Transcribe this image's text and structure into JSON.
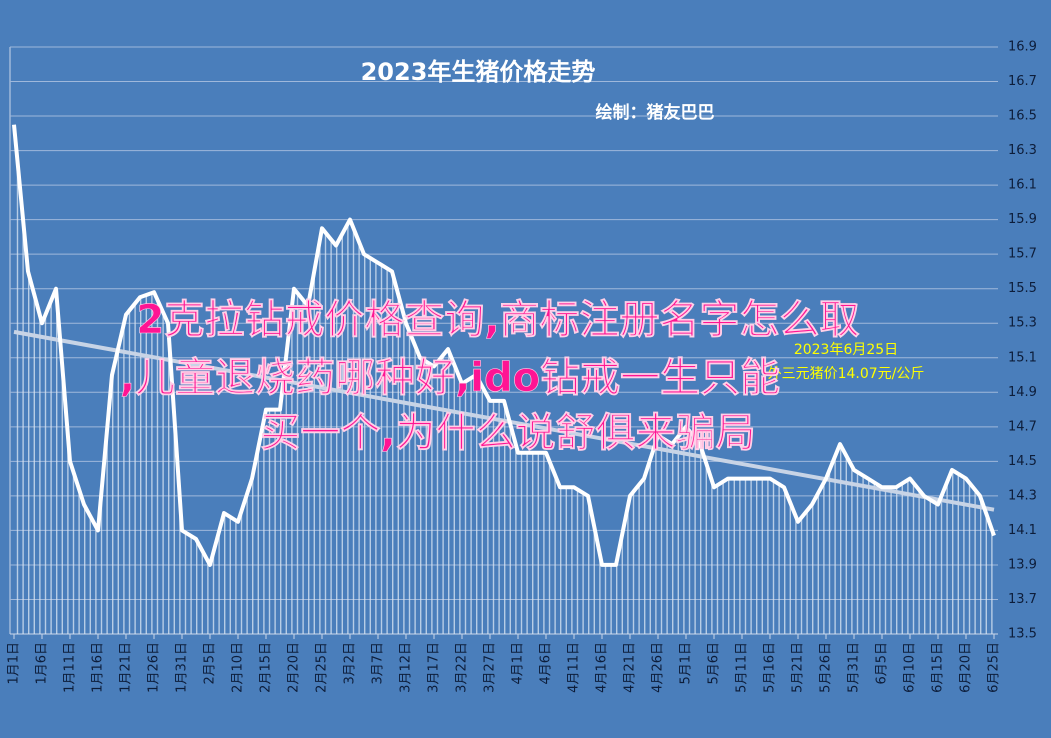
{
  "chart_data": {
    "type": "line",
    "title": "2023年生猪价格走势",
    "subtitle": "绘制：猪友巴巴",
    "annotation": [
      "2023年6月25日",
      "外三元猪价14.07元/公斤"
    ],
    "overlay_text": [
      "2克拉钻戒价格查询,商标注册名字怎么取",
      ",儿童退烧药哪种好,ido钻戒一生只能",
      "买一个,为什么说舒俱来骗局"
    ],
    "categories": [
      "1月1日",
      null,
      "1月6日",
      null,
      "1月11日",
      null,
      "1月16日",
      null,
      "1月21日",
      null,
      "1月26日",
      null,
      "1月31日",
      null,
      "2月5日",
      null,
      "2月10日",
      null,
      "2月15日",
      null,
      "2月20日",
      null,
      "2月25日",
      null,
      "3月2日",
      null,
      "3月7日",
      null,
      "3月12日",
      null,
      "3月17日",
      null,
      "3月22日",
      null,
      "3月27日",
      null,
      "4月1日",
      null,
      "4月6日",
      null,
      "4月11日",
      null,
      "4月16日",
      null,
      "4月21日",
      null,
      "4月26日",
      null,
      "5月1日",
      null,
      "5月6日",
      null,
      "5月11日",
      null,
      "5月16日",
      null,
      "5月21日",
      null,
      "5月26日",
      null,
      "5月31日",
      null,
      "6月5日",
      null,
      "6月10日",
      null,
      "6月15日",
      null,
      "6月20日",
      null,
      "6月25日"
    ],
    "series": [
      {
        "color": "#ffffff",
        "values": [
          16.45,
          15.6,
          15.3,
          15.5,
          14.5,
          14.25,
          14.1,
          15.0,
          15.35,
          15.45,
          15.48,
          15.3,
          14.1,
          14.05,
          13.9,
          14.2,
          14.15,
          14.4,
          14.8,
          14.8,
          15.5,
          15.4,
          15.85,
          15.75,
          15.9,
          15.7,
          15.65,
          15.6,
          15.3,
          15.1,
          15.05,
          15.15,
          14.95,
          15.0,
          14.85,
          14.85,
          14.55,
          14.55,
          14.55,
          14.35,
          14.35,
          14.3,
          13.9,
          13.9,
          14.3,
          14.4,
          14.65,
          14.6,
          14.7,
          14.6,
          14.35,
          14.4,
          14.4,
          14.4,
          14.4,
          14.35,
          14.15,
          14.25,
          14.4,
          14.6,
          14.45,
          14.4,
          14.35,
          14.35,
          14.4,
          14.3,
          14.25,
          14.45,
          14.4,
          14.3,
          14.07
        ]
      }
    ],
    "trendline": {
      "color": "#c8d4e6",
      "values": [
        15.25,
        14.22
      ]
    },
    "ylim": [
      13.5,
      16.9
    ],
    "yticks": [
      13.5,
      13.7,
      13.9,
      14.1,
      14.3,
      14.5,
      14.7,
      14.9,
      15.1,
      15.3,
      15.5,
      15.7,
      15.9,
      16.1,
      16.3,
      16.5,
      16.7,
      16.9
    ],
    "grid": true
  }
}
